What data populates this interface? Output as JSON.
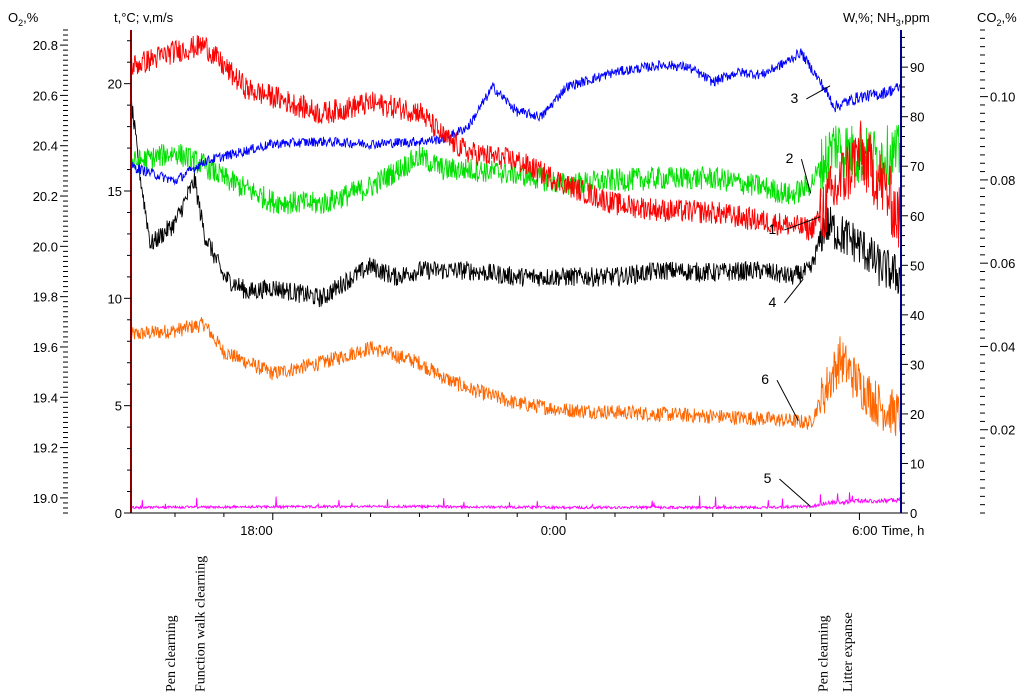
{
  "chart_data": {
    "type": "line",
    "title": "",
    "axes": {
      "left_outer": {
        "label_main": "O",
        "label_sub": "2",
        "label_tail": ",%",
        "ticks": [
          "20.8",
          "20.6",
          "20.4",
          "20.2",
          "20.0",
          "19.8",
          "19.6",
          "19.4",
          "19.2",
          "19.0"
        ],
        "range": [
          18.94,
          20.86
        ]
      },
      "left_inner": {
        "label": "t,°C; v,m/s",
        "ticks": [
          "20",
          "15",
          "10",
          "5",
          "0"
        ],
        "range": [
          0,
          22.5
        ]
      },
      "right_inner": {
        "label_a": "W,%; NH",
        "label_sub": "3",
        "label_b": ",ppm",
        "ticks": [
          "90",
          "80",
          "70",
          "60",
          "50",
          "40",
          "30",
          "20",
          "10",
          "0"
        ],
        "range": [
          0,
          97.5
        ]
      },
      "right_outer": {
        "label_main": "CO",
        "label_sub": "2",
        "label_tail": ",%",
        "ticks": [
          "0.10",
          "0.08",
          "0.06",
          "0.04",
          "0.02"
        ],
        "range": [
          0,
          0.116
        ]
      },
      "x": {
        "label": "Time, h",
        "ticks": [
          "18:00",
          "0:00",
          "6:00"
        ],
        "range_hours_from_midnight": [
          -8.9,
          6.85
        ]
      }
    },
    "series": [
      {
        "id": "1",
        "label": "1",
        "color": "#ff0000",
        "axis": "left_inner",
        "x": [
          -8.9,
          -8.0,
          -7.4,
          -7.0,
          -6.5,
          -6.0,
          -5.0,
          -4.0,
          -3.0,
          -2.5,
          -2.0,
          -1.0,
          0.0,
          1.0,
          2.0,
          3.0,
          4.0,
          4.6,
          5.0,
          5.5,
          6.0,
          6.5,
          6.85
        ],
        "y": [
          20.8,
          21.5,
          21.8,
          20.8,
          19.7,
          19.4,
          18.6,
          19.1,
          18.7,
          17.5,
          16.8,
          16.4,
          15.3,
          14.4,
          14.1,
          14.0,
          13.6,
          13.4,
          13.2,
          15.0,
          16.8,
          15.2,
          13.5
        ]
      },
      {
        "id": "2",
        "label": "2",
        "color": "#00e000",
        "axis": "left_inner",
        "x": [
          -8.9,
          -8.0,
          -7.4,
          -7.0,
          -6.0,
          -5.0,
          -4.0,
          -3.0,
          -2.5,
          -2.0,
          -1.0,
          0.0,
          1.0,
          2.0,
          3.0,
          4.0,
          4.6,
          5.0,
          5.5,
          6.0,
          6.85
        ],
        "y": [
          16.3,
          16.8,
          16.2,
          15.6,
          14.5,
          14.4,
          15.2,
          16.6,
          16.0,
          16.0,
          15.8,
          15.3,
          15.5,
          15.6,
          15.6,
          15.2,
          14.8,
          15.3,
          17.2,
          16.6,
          16.7
        ]
      },
      {
        "id": "3",
        "label": "3",
        "color": "#0000ff",
        "axis": "right_inner",
        "x": [
          -8.9,
          -8.0,
          -7.4,
          -7.0,
          -6.0,
          -5.0,
          -4.0,
          -3.0,
          -2.5,
          -2.0,
          -1.5,
          -1.0,
          -0.5,
          0.0,
          1.0,
          2.0,
          2.5,
          3.0,
          3.5,
          4.0,
          4.5,
          4.8,
          5.2,
          5.5,
          6.0,
          6.4,
          6.85
        ],
        "y": [
          70,
          67,
          71,
          72,
          74.5,
          75,
          74.5,
          75,
          75.5,
          78,
          86,
          81,
          80,
          86,
          89,
          90.5,
          90,
          87,
          89,
          88.5,
          91,
          93,
          87,
          82,
          84,
          84.5,
          86
        ]
      },
      {
        "id": "4",
        "label": "4",
        "color": "#000000",
        "axis": "left_inner",
        "x": [
          -8.9,
          -8.7,
          -8.5,
          -8.0,
          -7.6,
          -7.4,
          -7.0,
          -6.5,
          -6.0,
          -5.0,
          -4.5,
          -4.0,
          -3.5,
          -3.0,
          -2.0,
          -1.0,
          0.0,
          1.0,
          2.0,
          3.0,
          4.0,
          4.6,
          5.0,
          5.3,
          5.6,
          6.0,
          6.4,
          6.85
        ],
        "y": [
          19.2,
          15.5,
          12.5,
          13.5,
          15.5,
          13.0,
          11.0,
          10.3,
          10.5,
          10.0,
          10.8,
          11.5,
          11.0,
          11.3,
          11.3,
          11.0,
          11.0,
          11.0,
          11.3,
          11.2,
          11.3,
          11.0,
          11.3,
          13.5,
          13.0,
          12.5,
          11.5,
          11.0
        ]
      },
      {
        "id": "5",
        "label": "5",
        "color": "#ff00ff",
        "axis": "left_inner",
        "x": [
          -8.9,
          -4.0,
          0.0,
          4.0,
          5.0,
          5.5,
          6.0,
          6.85
        ],
        "y": [
          0.2,
          0.25,
          0.2,
          0.2,
          0.25,
          0.4,
          0.45,
          0.5
        ]
      },
      {
        "id": "6",
        "label": "6",
        "color": "#ff6600",
        "axis": "left_inner",
        "x": [
          -8.9,
          -8.0,
          -7.4,
          -7.0,
          -6.0,
          -5.0,
          -4.0,
          -3.0,
          -2.5,
          -2.0,
          -1.0,
          0.0,
          1.0,
          2.0,
          3.0,
          4.0,
          4.6,
          5.0,
          5.4,
          5.6,
          6.0,
          6.4,
          6.85
        ],
        "y": [
          8.3,
          8.5,
          8.8,
          7.5,
          6.5,
          7.0,
          7.7,
          7.0,
          6.3,
          5.8,
          5.1,
          4.8,
          4.7,
          4.6,
          4.5,
          4.4,
          4.3,
          4.2,
          6.2,
          7.2,
          6.0,
          5.0,
          4.5
        ]
      }
    ],
    "curve_labels": [
      {
        "text": "1",
        "x": 4.3,
        "y": 13.0
      },
      {
        "text": "2",
        "x": 4.65,
        "y": 16.3
      },
      {
        "text": "3",
        "x": 4.75,
        "y": 19.1
      },
      {
        "text": "4",
        "x": 4.3,
        "y": 9.6
      },
      {
        "text": "5",
        "x": 4.2,
        "y": 1.4
      },
      {
        "text": "6",
        "x": 4.15,
        "y": 6.0
      }
    ],
    "events": [
      {
        "label": "Pen clearning",
        "x": -8.0
      },
      {
        "label": "Function walk clearning",
        "x": -7.4
      },
      {
        "label": "Pen clearning",
        "x": 5.35
      },
      {
        "label": "Litter expanse",
        "x": 5.85
      }
    ],
    "grid": false,
    "legend": "none"
  }
}
